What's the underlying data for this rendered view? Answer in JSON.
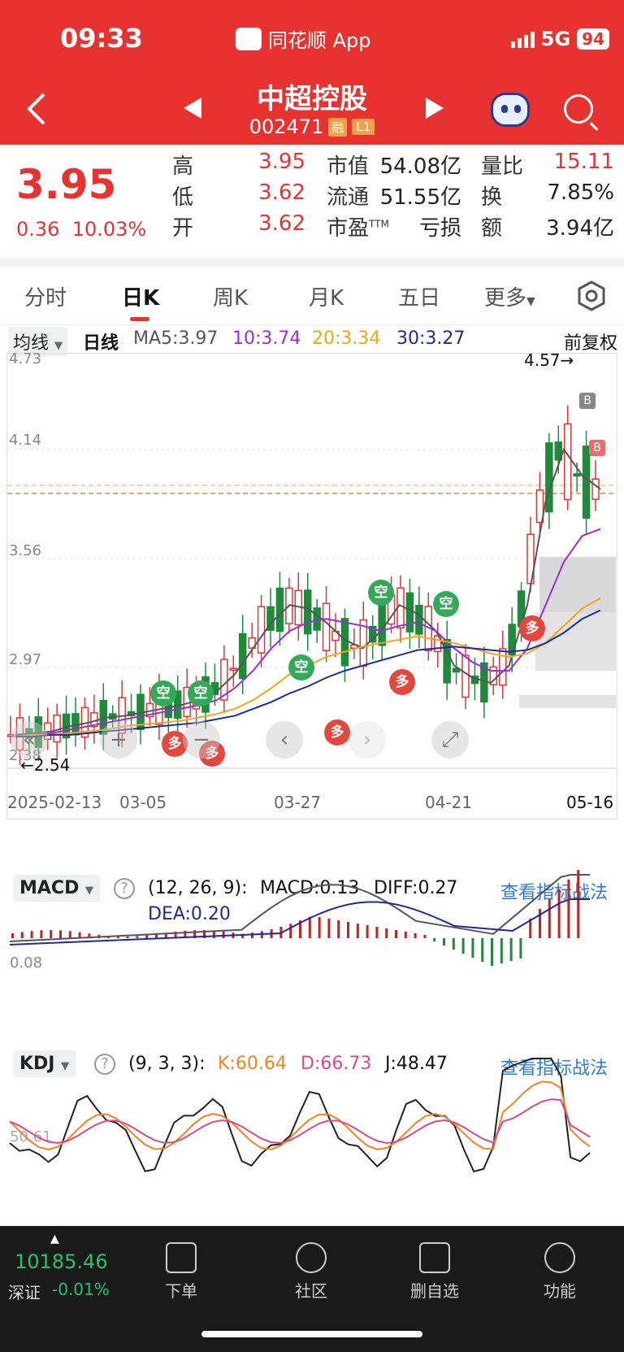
{
  "status": {
    "time": "09:33",
    "app": "同花顺 App",
    "network": "5G",
    "battery": "94"
  },
  "header": {
    "stock_name": "中超控股",
    "stock_code": "002471",
    "tag_rong": "融",
    "tag_level": "L1"
  },
  "quote": {
    "price": "3.95",
    "change": "0.36",
    "change_pct": "10.03%",
    "high_label": "高",
    "high": "3.95",
    "low_label": "低",
    "low": "3.62",
    "open_label": "开",
    "open": "3.62",
    "mcap_label": "市值",
    "mcap": "54.08亿",
    "float_label": "流通",
    "float": "51.55亿",
    "pe_label": "市盈",
    "pe_sup": "TTM",
    "pe": "亏损",
    "vr_label": "量比",
    "vr": "15.11",
    "turn_label": "换",
    "turn": "7.85%",
    "amt_label": "额",
    "amt": "3.94亿"
  },
  "tabs": [
    "分时",
    "日K",
    "周K",
    "月K",
    "五日",
    "更多"
  ],
  "ma": {
    "select": "均线",
    "period": "日线",
    "ma5": "MA5:3.97",
    "ma10": "10:3.74",
    "ma20": "20:3.34",
    "ma30": "30:3.27",
    "adjust": "前复权",
    "colors": {
      "ma5": "#555555",
      "ma10": "#9b2bd9",
      "ma20": "#f4a418",
      "ma30": "#1d2a9c"
    }
  },
  "kline": {
    "y_ticks": [
      "4.73",
      "4.14",
      "3.56",
      "2.97",
      "2.38"
    ],
    "high_mark": "4.57→",
    "low_mark": "←2.54",
    "x_labels": [
      "2025-02-13",
      "03-05",
      "03-27",
      "04-21",
      "05-16"
    ],
    "badge_kong": "空",
    "badge_duo": "多",
    "badge_b": "B",
    "up_color": "#e8322f",
    "down_color": "#1e8a3a"
  },
  "macd": {
    "select": "MACD",
    "params": "(12, 26, 9):",
    "macd": "MACD:0.13",
    "diff": "DIFF:0.27",
    "dea": "DEA:0.20",
    "y_tick": "0.08",
    "link": "查看指标战法"
  },
  "kdj": {
    "select": "KDJ",
    "params": "(9, 3, 3):",
    "k": "K:60.64",
    "d": "D:66.73",
    "j": "J:48.47",
    "y_tick": "50.61",
    "link": "查看指标战法"
  },
  "bottom": {
    "index_value": "10185.46",
    "index_name": "深证",
    "index_change": "-0.01%",
    "nav": [
      "下单",
      "社区",
      "删自选",
      "功能"
    ]
  },
  "chart_data": {
    "type": "candlestick",
    "title": "中超控股 日K",
    "x_range": [
      "2025-02-13",
      "05-16"
    ],
    "ylim": [
      2.38,
      4.73
    ],
    "series": [
      {
        "name": "MA5",
        "values": [
          2.55,
          2.56,
          2.57,
          2.6,
          2.62,
          2.65,
          2.66,
          2.68,
          2.7,
          2.72,
          2.75,
          2.8,
          2.9,
          3.05,
          3.2,
          3.3,
          3.28,
          3.2,
          3.1,
          3.05,
          3.15,
          3.3,
          3.25,
          3.15,
          2.95,
          2.88,
          2.85,
          2.95,
          3.3,
          3.9,
          4.2,
          4.05,
          3.97
        ]
      },
      {
        "name": "10",
        "values": [
          2.54,
          2.55,
          2.56,
          2.58,
          2.6,
          2.62,
          2.64,
          2.66,
          2.68,
          2.7,
          2.72,
          2.75,
          2.82,
          2.92,
          3.05,
          3.15,
          3.2,
          3.22,
          3.2,
          3.18,
          3.15,
          3.18,
          3.2,
          3.15,
          3.05,
          2.97,
          2.92,
          2.92,
          3.05,
          3.3,
          3.55,
          3.7,
          3.74
        ]
      },
      {
        "name": "20",
        "values": [
          2.54,
          2.55,
          2.55,
          2.56,
          2.57,
          2.58,
          2.6,
          2.61,
          2.62,
          2.63,
          2.65,
          2.67,
          2.7,
          2.75,
          2.82,
          2.9,
          2.95,
          3.0,
          3.03,
          3.06,
          3.08,
          3.1,
          3.12,
          3.1,
          3.08,
          3.05,
          3.02,
          3.0,
          3.02,
          3.08,
          3.18,
          3.28,
          3.34
        ]
      },
      {
        "name": "30",
        "values": [
          2.54,
          2.54,
          2.55,
          2.55,
          2.56,
          2.57,
          2.58,
          2.59,
          2.6,
          2.61,
          2.62,
          2.64,
          2.66,
          2.7,
          2.74,
          2.79,
          2.83,
          2.88,
          2.92,
          2.95,
          2.98,
          3.01,
          3.04,
          3.05,
          3.06,
          3.05,
          3.04,
          3.03,
          3.04,
          3.08,
          3.14,
          3.22,
          3.27
        ]
      }
    ],
    "high": 4.57,
    "low": 2.54
  }
}
